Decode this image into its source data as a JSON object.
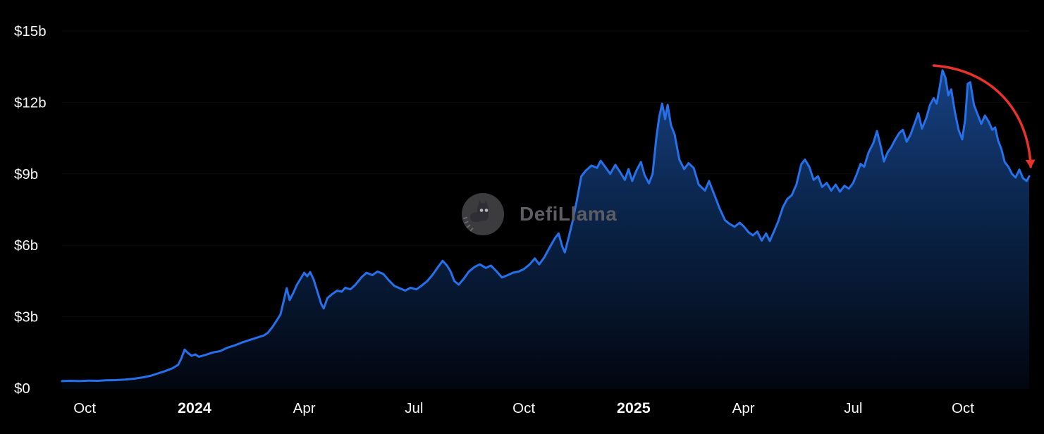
{
  "watermark": {
    "label": "DefiLlama"
  },
  "colors": {
    "background": "#000000",
    "line": "#2571ec",
    "area_top": "#1c4f9e",
    "area_mid": "#0b2750",
    "area_bottom": "#020610",
    "axis_text": "#f5f5f5",
    "watermark_gray": "#5d5d63",
    "arrow_red": "#e8322a",
    "gridline": "rgba(255,255,255,0.05)"
  },
  "chart_data": {
    "type": "area",
    "title": "",
    "xlabel": "",
    "ylabel": "",
    "y_unit": "USD billions",
    "x_unit": "months since 2023-10-01",
    "ylim": [
      0,
      15
    ],
    "xlim": [
      -0.62,
      25.81
    ],
    "grid": false,
    "legend": false,
    "y_ticks": [
      {
        "value": 0,
        "label": "$0"
      },
      {
        "value": 3,
        "label": "$3b"
      },
      {
        "value": 6,
        "label": "$6b"
      },
      {
        "value": 9,
        "label": "$9b"
      },
      {
        "value": 12,
        "label": "$12b"
      },
      {
        "value": 15,
        "label": "$15b"
      }
    ],
    "x_ticks": [
      {
        "t": 0,
        "label": "Oct",
        "bold": false
      },
      {
        "t": 3,
        "label": "2024",
        "bold": true
      },
      {
        "t": 6,
        "label": "Apr",
        "bold": false
      },
      {
        "t": 9,
        "label": "Jul",
        "bold": false
      },
      {
        "t": 12,
        "label": "Oct",
        "bold": false
      },
      {
        "t": 15,
        "label": "2025",
        "bold": true
      },
      {
        "t": 18,
        "label": "Apr",
        "bold": false
      },
      {
        "t": 21,
        "label": "Jul",
        "bold": false
      },
      {
        "t": 24,
        "label": "Oct",
        "bold": false
      }
    ],
    "series": [
      {
        "name": "value",
        "points": [
          [
            -0.62,
            0.3
          ],
          [
            -0.4,
            0.31
          ],
          [
            -0.15,
            0.3
          ],
          [
            0.1,
            0.32
          ],
          [
            0.35,
            0.31
          ],
          [
            0.6,
            0.33
          ],
          [
            0.85,
            0.34
          ],
          [
            1.1,
            0.36
          ],
          [
            1.35,
            0.4
          ],
          [
            1.6,
            0.46
          ],
          [
            1.8,
            0.52
          ],
          [
            2.0,
            0.62
          ],
          [
            2.2,
            0.72
          ],
          [
            2.4,
            0.84
          ],
          [
            2.55,
            0.98
          ],
          [
            2.64,
            1.25
          ],
          [
            2.73,
            1.62
          ],
          [
            2.82,
            1.48
          ],
          [
            2.92,
            1.36
          ],
          [
            3.02,
            1.42
          ],
          [
            3.12,
            1.32
          ],
          [
            3.3,
            1.4
          ],
          [
            3.5,
            1.5
          ],
          [
            3.7,
            1.56
          ],
          [
            3.9,
            1.7
          ],
          [
            4.1,
            1.8
          ],
          [
            4.3,
            1.92
          ],
          [
            4.5,
            2.02
          ],
          [
            4.7,
            2.12
          ],
          [
            4.9,
            2.22
          ],
          [
            5.0,
            2.32
          ],
          [
            5.12,
            2.55
          ],
          [
            5.25,
            2.85
          ],
          [
            5.35,
            3.1
          ],
          [
            5.45,
            3.75
          ],
          [
            5.52,
            4.2
          ],
          [
            5.6,
            3.7
          ],
          [
            5.7,
            4.0
          ],
          [
            5.8,
            4.35
          ],
          [
            5.9,
            4.6
          ],
          [
            6.0,
            4.85
          ],
          [
            6.08,
            4.7
          ],
          [
            6.16,
            4.88
          ],
          [
            6.26,
            4.55
          ],
          [
            6.36,
            4.05
          ],
          [
            6.46,
            3.55
          ],
          [
            6.53,
            3.35
          ],
          [
            6.63,
            3.78
          ],
          [
            6.76,
            3.95
          ],
          [
            6.9,
            4.1
          ],
          [
            7.02,
            4.05
          ],
          [
            7.12,
            4.22
          ],
          [
            7.26,
            4.15
          ],
          [
            7.4,
            4.35
          ],
          [
            7.56,
            4.65
          ],
          [
            7.7,
            4.85
          ],
          [
            7.86,
            4.75
          ],
          [
            8.0,
            4.9
          ],
          [
            8.16,
            4.8
          ],
          [
            8.3,
            4.55
          ],
          [
            8.46,
            4.3
          ],
          [
            8.6,
            4.2
          ],
          [
            8.76,
            4.1
          ],
          [
            8.9,
            4.22
          ],
          [
            9.06,
            4.15
          ],
          [
            9.2,
            4.3
          ],
          [
            9.36,
            4.5
          ],
          [
            9.5,
            4.75
          ],
          [
            9.66,
            5.1
          ],
          [
            9.78,
            5.35
          ],
          [
            9.9,
            5.15
          ],
          [
            10.0,
            4.9
          ],
          [
            10.1,
            4.5
          ],
          [
            10.22,
            4.35
          ],
          [
            10.36,
            4.6
          ],
          [
            10.5,
            4.9
          ],
          [
            10.66,
            5.1
          ],
          [
            10.8,
            5.2
          ],
          [
            10.96,
            5.05
          ],
          [
            11.1,
            5.15
          ],
          [
            11.26,
            4.9
          ],
          [
            11.4,
            4.65
          ],
          [
            11.56,
            4.75
          ],
          [
            11.7,
            4.85
          ],
          [
            11.86,
            4.9
          ],
          [
            12.0,
            5.0
          ],
          [
            12.16,
            5.2
          ],
          [
            12.3,
            5.45
          ],
          [
            12.42,
            5.2
          ],
          [
            12.56,
            5.5
          ],
          [
            12.7,
            5.9
          ],
          [
            12.85,
            6.3
          ],
          [
            12.95,
            6.5
          ],
          [
            13.05,
            5.95
          ],
          [
            13.12,
            5.7
          ],
          [
            13.22,
            6.3
          ],
          [
            13.33,
            7.0
          ],
          [
            13.45,
            7.9
          ],
          [
            13.57,
            8.9
          ],
          [
            13.7,
            9.15
          ],
          [
            13.85,
            9.35
          ],
          [
            14.0,
            9.25
          ],
          [
            14.1,
            9.55
          ],
          [
            14.22,
            9.3
          ],
          [
            14.36,
            9.0
          ],
          [
            14.5,
            9.38
          ],
          [
            14.62,
            9.1
          ],
          [
            14.76,
            8.75
          ],
          [
            14.86,
            9.2
          ],
          [
            14.96,
            8.7
          ],
          [
            15.08,
            9.15
          ],
          [
            15.2,
            9.5
          ],
          [
            15.3,
            8.95
          ],
          [
            15.42,
            8.6
          ],
          [
            15.52,
            9.0
          ],
          [
            15.62,
            10.5
          ],
          [
            15.7,
            11.4
          ],
          [
            15.78,
            11.95
          ],
          [
            15.86,
            11.3
          ],
          [
            15.93,
            11.9
          ],
          [
            16.02,
            11.05
          ],
          [
            16.12,
            10.65
          ],
          [
            16.25,
            9.6
          ],
          [
            16.38,
            9.2
          ],
          [
            16.5,
            9.45
          ],
          [
            16.64,
            9.25
          ],
          [
            16.78,
            8.55
          ],
          [
            16.95,
            8.3
          ],
          [
            17.06,
            8.7
          ],
          [
            17.2,
            8.15
          ],
          [
            17.35,
            7.55
          ],
          [
            17.5,
            7.05
          ],
          [
            17.62,
            6.9
          ],
          [
            17.76,
            6.78
          ],
          [
            17.9,
            6.95
          ],
          [
            18.02,
            6.78
          ],
          [
            18.14,
            6.55
          ],
          [
            18.26,
            6.42
          ],
          [
            18.38,
            6.58
          ],
          [
            18.5,
            6.2
          ],
          [
            18.62,
            6.5
          ],
          [
            18.72,
            6.18
          ],
          [
            18.84,
            6.6
          ],
          [
            18.95,
            7.0
          ],
          [
            19.08,
            7.6
          ],
          [
            19.2,
            7.95
          ],
          [
            19.32,
            8.1
          ],
          [
            19.45,
            8.55
          ],
          [
            19.58,
            9.4
          ],
          [
            19.68,
            9.6
          ],
          [
            19.8,
            9.3
          ],
          [
            19.92,
            8.75
          ],
          [
            20.04,
            8.9
          ],
          [
            20.15,
            8.45
          ],
          [
            20.28,
            8.62
          ],
          [
            20.4,
            8.3
          ],
          [
            20.52,
            8.55
          ],
          [
            20.64,
            8.25
          ],
          [
            20.76,
            8.5
          ],
          [
            20.88,
            8.38
          ],
          [
            21.0,
            8.62
          ],
          [
            21.1,
            9.0
          ],
          [
            21.2,
            9.42
          ],
          [
            21.3,
            9.3
          ],
          [
            21.42,
            9.9
          ],
          [
            21.55,
            10.3
          ],
          [
            21.65,
            10.8
          ],
          [
            21.76,
            10.1
          ],
          [
            21.84,
            9.52
          ],
          [
            21.94,
            9.9
          ],
          [
            22.04,
            10.12
          ],
          [
            22.14,
            10.42
          ],
          [
            22.26,
            10.72
          ],
          [
            22.36,
            10.85
          ],
          [
            22.46,
            10.35
          ],
          [
            22.56,
            10.62
          ],
          [
            22.68,
            11.12
          ],
          [
            22.78,
            11.55
          ],
          [
            22.88,
            10.9
          ],
          [
            23.0,
            11.35
          ],
          [
            23.1,
            11.9
          ],
          [
            23.2,
            12.18
          ],
          [
            23.28,
            11.95
          ],
          [
            23.36,
            12.6
          ],
          [
            23.44,
            13.35
          ],
          [
            23.52,
            13.05
          ],
          [
            23.6,
            12.3
          ],
          [
            23.68,
            12.55
          ],
          [
            23.78,
            11.6
          ],
          [
            23.88,
            10.85
          ],
          [
            23.98,
            10.45
          ],
          [
            24.06,
            11.3
          ],
          [
            24.13,
            12.78
          ],
          [
            24.2,
            12.85
          ],
          [
            24.3,
            11.9
          ],
          [
            24.4,
            11.5
          ],
          [
            24.5,
            11.1
          ],
          [
            24.6,
            11.45
          ],
          [
            24.7,
            11.2
          ],
          [
            24.8,
            10.85
          ],
          [
            24.88,
            10.95
          ],
          [
            24.96,
            10.4
          ],
          [
            25.05,
            10.05
          ],
          [
            25.14,
            9.5
          ],
          [
            25.24,
            9.3
          ],
          [
            25.34,
            9.0
          ],
          [
            25.44,
            8.85
          ],
          [
            25.54,
            9.18
          ],
          [
            25.64,
            8.82
          ],
          [
            25.74,
            8.7
          ],
          [
            25.81,
            8.9
          ]
        ]
      }
    ],
    "annotations": [
      {
        "shape": "curved-arrow",
        "color": "#e8322a",
        "from": {
          "t": 23.2,
          "value": 13.55
        },
        "to": {
          "t": 25.85,
          "value": 9.3
        }
      }
    ]
  }
}
